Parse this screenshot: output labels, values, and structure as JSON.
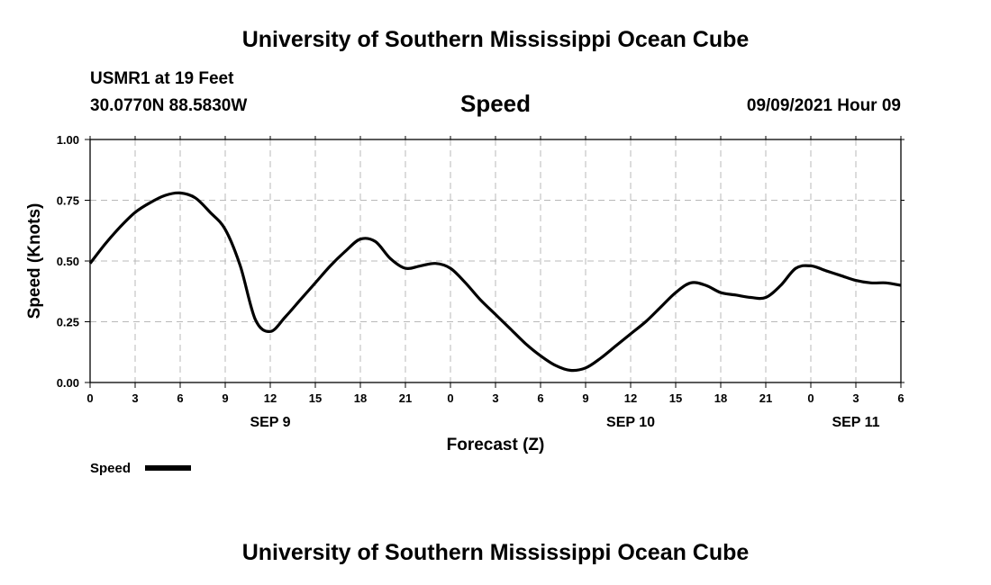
{
  "header": {
    "title_top": "University of Southern Mississippi Ocean Cube",
    "station": "USMR1 at 19 Feet",
    "coords": "30.0770N  88.5830W",
    "datetime": "09/09/2021 Hour 09",
    "title_bottom": "University of Southern Mississippi Ocean Cube"
  },
  "chart_data": {
    "type": "line",
    "title": "Speed",
    "xlabel": "Forecast (Z)",
    "ylabel": "Speed (Knots)",
    "ylim": [
      0,
      1
    ],
    "xlim": [
      0,
      54
    ],
    "x_unit": "hours from 2021-09-09 00Z",
    "grid": true,
    "legend_position": "bottom-left",
    "yticks": [
      {
        "value": 0,
        "label": "0.00"
      },
      {
        "value": 0.25,
        "label": "0.25"
      },
      {
        "value": 0.5,
        "label": "0.50"
      },
      {
        "value": 0.75,
        "label": "0.75"
      },
      {
        "value": 1,
        "label": "1.00"
      }
    ],
    "xticks": [
      {
        "value": 0,
        "label": "0"
      },
      {
        "value": 3,
        "label": "3"
      },
      {
        "value": 6,
        "label": "6"
      },
      {
        "value": 9,
        "label": "9"
      },
      {
        "value": 12,
        "label": "12"
      },
      {
        "value": 15,
        "label": "15"
      },
      {
        "value": 18,
        "label": "18"
      },
      {
        "value": 21,
        "label": "21"
      },
      {
        "value": 24,
        "label": "0"
      },
      {
        "value": 27,
        "label": "3"
      },
      {
        "value": 30,
        "label": "6"
      },
      {
        "value": 33,
        "label": "9"
      },
      {
        "value": 36,
        "label": "12"
      },
      {
        "value": 39,
        "label": "15"
      },
      {
        "value": 42,
        "label": "18"
      },
      {
        "value": 45,
        "label": "21"
      },
      {
        "value": 48,
        "label": "0"
      },
      {
        "value": 51,
        "label": "3"
      },
      {
        "value": 54,
        "label": "6"
      }
    ],
    "date_labels": [
      {
        "value": 12,
        "label": "SEP 9"
      },
      {
        "value": 36,
        "label": "SEP 10"
      },
      {
        "value": 51,
        "label": "SEP 11"
      }
    ],
    "series": [
      {
        "name": "Speed",
        "color": "#000000",
        "x": [
          0,
          1,
          2,
          3,
          4,
          5,
          6,
          7,
          8,
          9,
          10,
          11,
          12,
          13,
          14,
          15,
          16,
          17,
          18,
          19,
          20,
          21,
          22,
          23,
          24,
          25,
          26,
          27,
          28,
          29,
          30,
          31,
          32,
          33,
          34,
          35,
          36,
          37,
          38,
          39,
          40,
          41,
          42,
          43,
          44,
          45,
          46,
          47,
          48,
          49,
          50,
          51,
          52,
          53,
          54
        ],
        "values": [
          0.49,
          0.57,
          0.64,
          0.7,
          0.74,
          0.77,
          0.78,
          0.76,
          0.7,
          0.63,
          0.48,
          0.26,
          0.21,
          0.27,
          0.34,
          0.41,
          0.48,
          0.54,
          0.59,
          0.58,
          0.51,
          0.47,
          0.48,
          0.49,
          0.47,
          0.41,
          0.34,
          0.28,
          0.22,
          0.16,
          0.11,
          0.07,
          0.05,
          0.06,
          0.1,
          0.15,
          0.2,
          0.25,
          0.31,
          0.37,
          0.41,
          0.4,
          0.37,
          0.36,
          0.35,
          0.35,
          0.4,
          0.47,
          0.48,
          0.46,
          0.44,
          0.42,
          0.41,
          0.41,
          0.4
        ]
      }
    ]
  }
}
